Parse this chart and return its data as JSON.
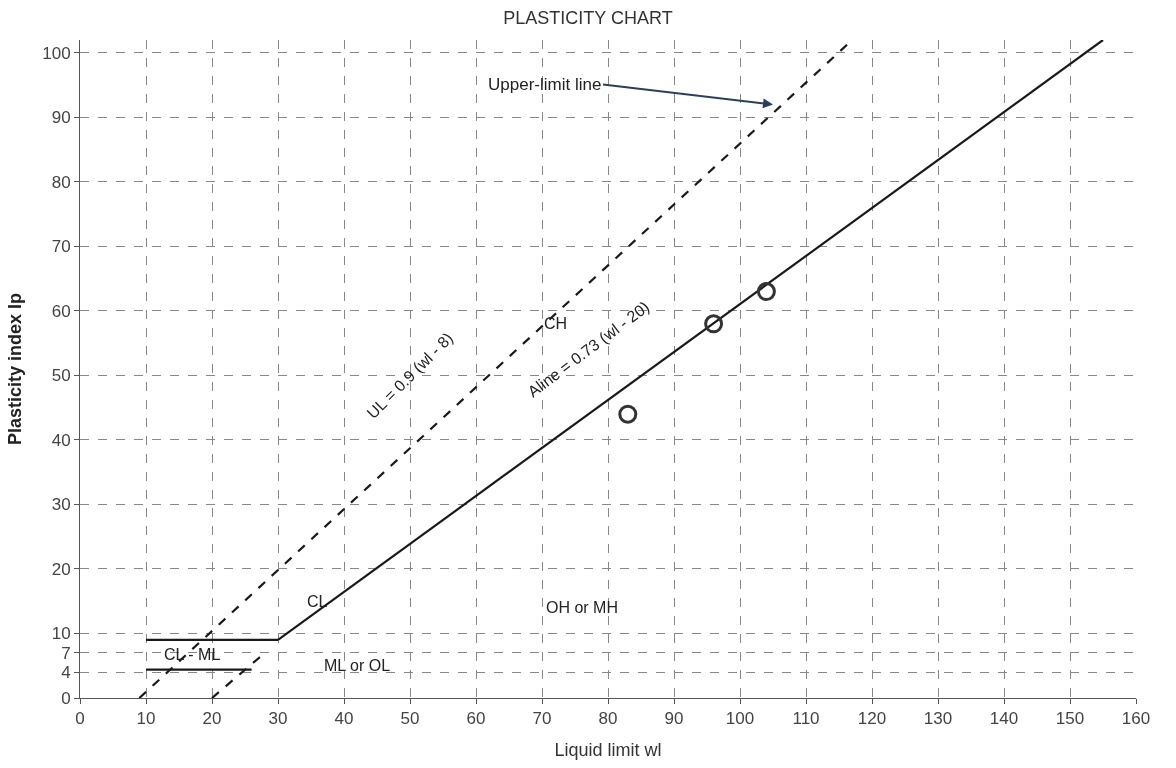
{
  "chart_data": {
    "type": "line",
    "title": "PLASTICITY CHART",
    "xlabel": "Liquid limit wl",
    "ylabel": "Plasticity index Ip",
    "xlim": [
      0,
      160
    ],
    "xticks": [
      0,
      10,
      20,
      30,
      40,
      50,
      60,
      70,
      80,
      90,
      100,
      110,
      120,
      130,
      140,
      150,
      160
    ],
    "ylim": [
      0,
      102
    ],
    "yticks": [
      0,
      4,
      7,
      10,
      20,
      30,
      40,
      50,
      60,
      70,
      80,
      90,
      100
    ],
    "grid": true,
    "legend": false,
    "series": [
      {
        "color": "#1a1a1a",
        "line_style": "solid",
        "x": [
          30,
          155
        ],
        "values": [
          9,
          102
        ]
      },
      {
        "color": "#1a1a1a",
        "line_style": "dashed",
        "x": [
          9,
          117
        ],
        "values": [
          0,
          102
        ]
      },
      {
        "color": "#1a1a1a",
        "line_style": "solid",
        "x": [
          10,
          30
        ],
        "values": [
          9,
          9
        ]
      },
      {
        "color": "#1a1a1a",
        "line_style": "solid",
        "x": [
          10,
          26
        ],
        "values": [
          4.4,
          4.4
        ]
      },
      {
        "color": "#1a1a1a",
        "line_style": "dashed",
        "x": [
          20,
          28
        ],
        "values": [
          0,
          7
        ]
      },
      {
        "type": "scatter",
        "color": "#333333",
        "marker": "circle",
        "x": [
          83,
          96,
          104
        ],
        "values": [
          44,
          58,
          63
        ]
      }
    ],
    "annotations": [
      "Upper-limit line",
      "UL = 0.9 (wl - 8)",
      "Aline = 0.73 (wl - 20)",
      "CH",
      "CL",
      "OH or MH",
      "ML or OL",
      "CL - ML"
    ]
  }
}
